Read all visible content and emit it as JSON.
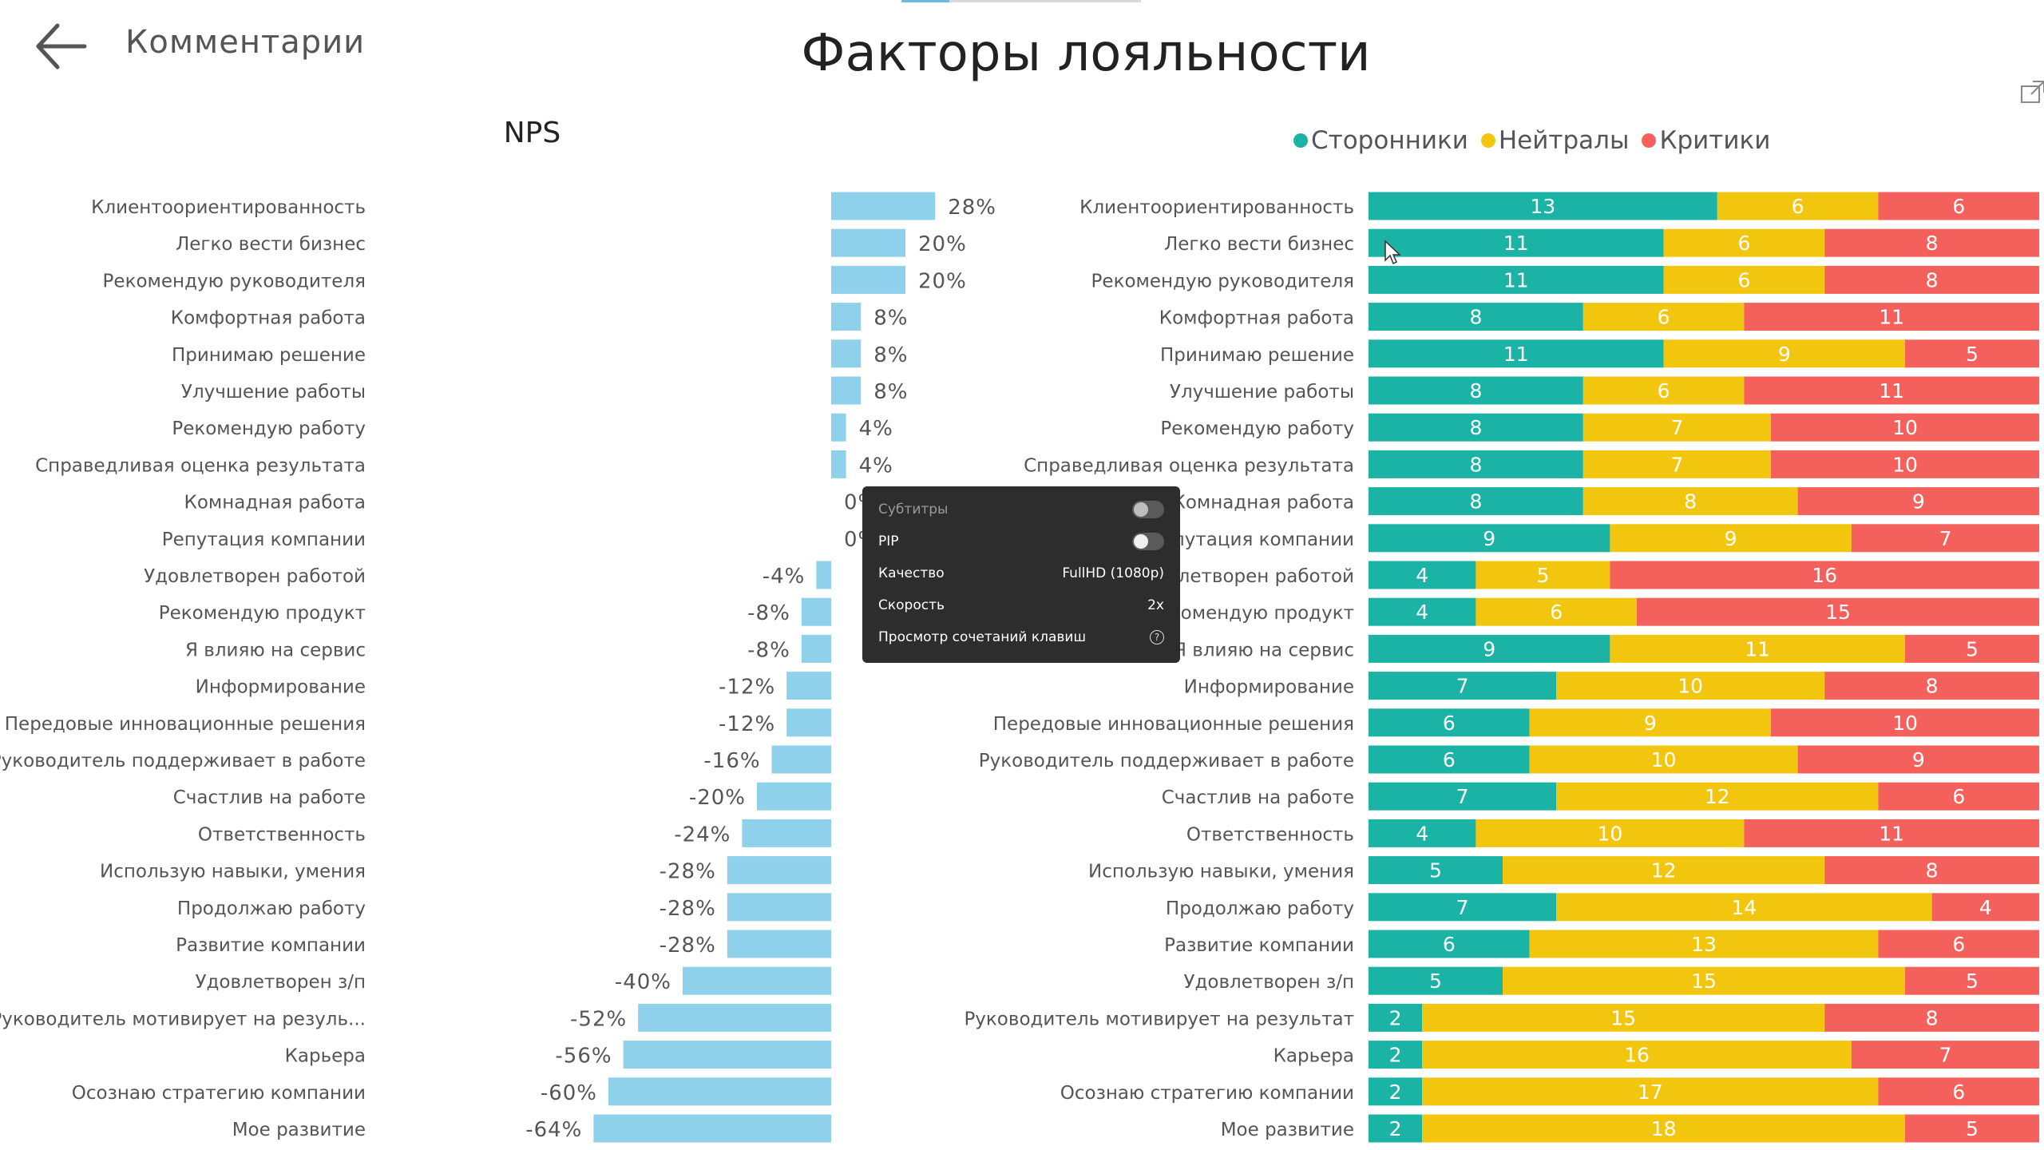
{
  "header": {
    "back_label": "Комментарии",
    "title": "Факторы лояльности"
  },
  "colors": {
    "nps_bar": "#8fd0ea",
    "supporters": "#1ab3a6",
    "neutrals": "#f2c60f",
    "critics": "#f4615d"
  },
  "chart_data": [
    {
      "type": "bar",
      "title": "NPS",
      "orientation": "horizontal",
      "categories": [
        "Клиентоориентированность",
        "Легко вести бизнес",
        "Рекомендую руководителя",
        "Комфортная работа",
        "Принимаю решение",
        "Улучшение работы",
        "Рекомендую работу",
        "Справедливая оценка результата",
        "Комнадная работа",
        "Репутация компании",
        "Удовлетворен работой",
        "Рекомендую продукт",
        "Я влияю на сервис",
        "Информирование",
        "Передовые инновационные решения",
        "Руководитель поддерживает в работе",
        "Счастлив на работе",
        "Ответственность",
        "Использую навыки, умения",
        "Продолжаю работу",
        "Развитие компании",
        "Удовлетворен з/п",
        "Руководитель мотивирует на резуль...",
        "Карьера",
        "Осознаю стратегию компании",
        "Мое развитие"
      ],
      "values": [
        28,
        20,
        20,
        8,
        8,
        8,
        4,
        4,
        0,
        0,
        -4,
        -8,
        -8,
        -12,
        -12,
        -16,
        -20,
        -24,
        -28,
        -28,
        -28,
        -40,
        -52,
        -56,
        -60,
        -64
      ],
      "labels": [
        "28%",
        "20%",
        "20%",
        "8%",
        "8%",
        "8%",
        "4%",
        "4%",
        "0%",
        "0%",
        "-4%",
        "-8%",
        "-8%",
        "-12%",
        "-12%",
        "-16%",
        "-20%",
        "-24%",
        "-28%",
        "-28%",
        "-28%",
        "-40%",
        "-52%",
        "-56%",
        "-60%",
        "-64%"
      ],
      "unit": "%"
    },
    {
      "type": "bar",
      "stacked": true,
      "orientation": "horizontal",
      "categories": [
        "Клиентоориентированность",
        "Легко вести бизнес",
        "Рекомендую руководителя",
        "Комфортная работа",
        "Принимаю решение",
        "Улучшение работы",
        "Рекомендую работу",
        "Справедливая оценка результата",
        "Комнадная работа",
        "Репутация компании",
        "Удовлетворен работой",
        "Рекомендую продукт",
        "Я влияю на сервис",
        "Информирование",
        "Передовые инновационные решения",
        "Руководитель поддерживает в работе",
        "Счастлив на работе",
        "Ответственность",
        "Использую навыки, умения",
        "Продолжаю работу",
        "Развитие компании",
        "Удовлетворен з/п",
        "Руководитель мотивирует на результат",
        "Карьера",
        "Осознаю стратегию компании",
        "Мое развитие"
      ],
      "series": [
        {
          "name": "Сторонники",
          "values": [
            13,
            11,
            11,
            8,
            11,
            8,
            8,
            8,
            8,
            9,
            4,
            4,
            9,
            7,
            6,
            6,
            7,
            4,
            5,
            7,
            6,
            5,
            2,
            2,
            2,
            2
          ]
        },
        {
          "name": "Нейтралы",
          "values": [
            6,
            6,
            6,
            6,
            9,
            6,
            7,
            7,
            8,
            9,
            5,
            6,
            11,
            10,
            9,
            10,
            12,
            10,
            12,
            14,
            13,
            15,
            15,
            16,
            17,
            18
          ]
        },
        {
          "name": "Критики",
          "values": [
            6,
            8,
            8,
            11,
            5,
            11,
            10,
            10,
            9,
            7,
            16,
            15,
            5,
            8,
            10,
            9,
            6,
            11,
            8,
            4,
            6,
            5,
            8,
            7,
            6,
            5
          ]
        }
      ],
      "legend_position": "top"
    }
  ],
  "video_menu": {
    "subtitles_label": "Субтитры",
    "pip_label": "PIP",
    "quality_label": "Качество",
    "quality_value": "FullHD (1080p)",
    "speed_label": "Скорость",
    "speed_value": "2x",
    "shortcuts_label": "Просмотр сочетаний клавиш"
  }
}
